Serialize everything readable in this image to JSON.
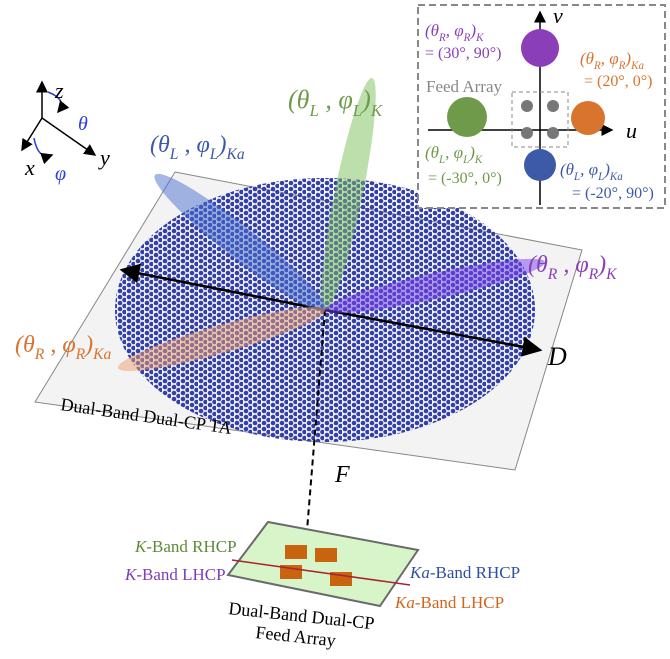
{
  "axes": {
    "z": "z",
    "theta": "θ",
    "y": "y",
    "x": "x",
    "phi": "φ"
  },
  "beams": [
    {
      "label": [
        "(θ",
        "L",
        " , φ",
        "L",
        ")",
        "K"
      ]
    },
    {
      "label": [
        "(θ",
        "L",
        " , φ",
        "L",
        ")",
        "Ka"
      ]
    },
    {
      "label": [
        "(θ",
        "R",
        " , φ",
        "R",
        ")",
        "K"
      ]
    },
    {
      "label": [
        "(θ",
        "R",
        " , φ",
        "R",
        ")",
        "Ka"
      ]
    }
  ],
  "aperture": {
    "label": "Dual-Band Dual-CP TA",
    "diameter": "D",
    "focal": "F"
  },
  "inset": {
    "u": "u",
    "v": "v",
    "feed": "Feed Array",
    "beams": [
      {
        "label": [
          "(θ",
          "R",
          ", φ",
          "R",
          ")",
          "K"
        ],
        "value": "= (30°, 90°)"
      },
      {
        "label": [
          "(θ",
          "R",
          ", φ",
          "R",
          ")",
          "Ka"
        ],
        "value": "= (20°, 0°)"
      },
      {
        "label": [
          "(θ",
          "L",
          ", φ",
          "L",
          ")",
          "K"
        ],
        "value": "= (-30°, 0°)"
      },
      {
        "label": [
          "(θ",
          "L",
          ", φ",
          "L",
          ")",
          "Ka"
        ],
        "value": "= (-20°, 90°)"
      }
    ]
  },
  "feed": {
    "ports": [
      {
        "band": "K",
        "rest": "-Band RHCP"
      },
      {
        "band": "K",
        "rest": "-Band LHCP"
      },
      {
        "band": "Ka",
        "rest": "-Band RHCP"
      },
      {
        "band": "Ka",
        "rest": "-Band LHCP"
      }
    ],
    "title": [
      "Dual-Band Dual-CP",
      "Feed Array"
    ]
  }
}
